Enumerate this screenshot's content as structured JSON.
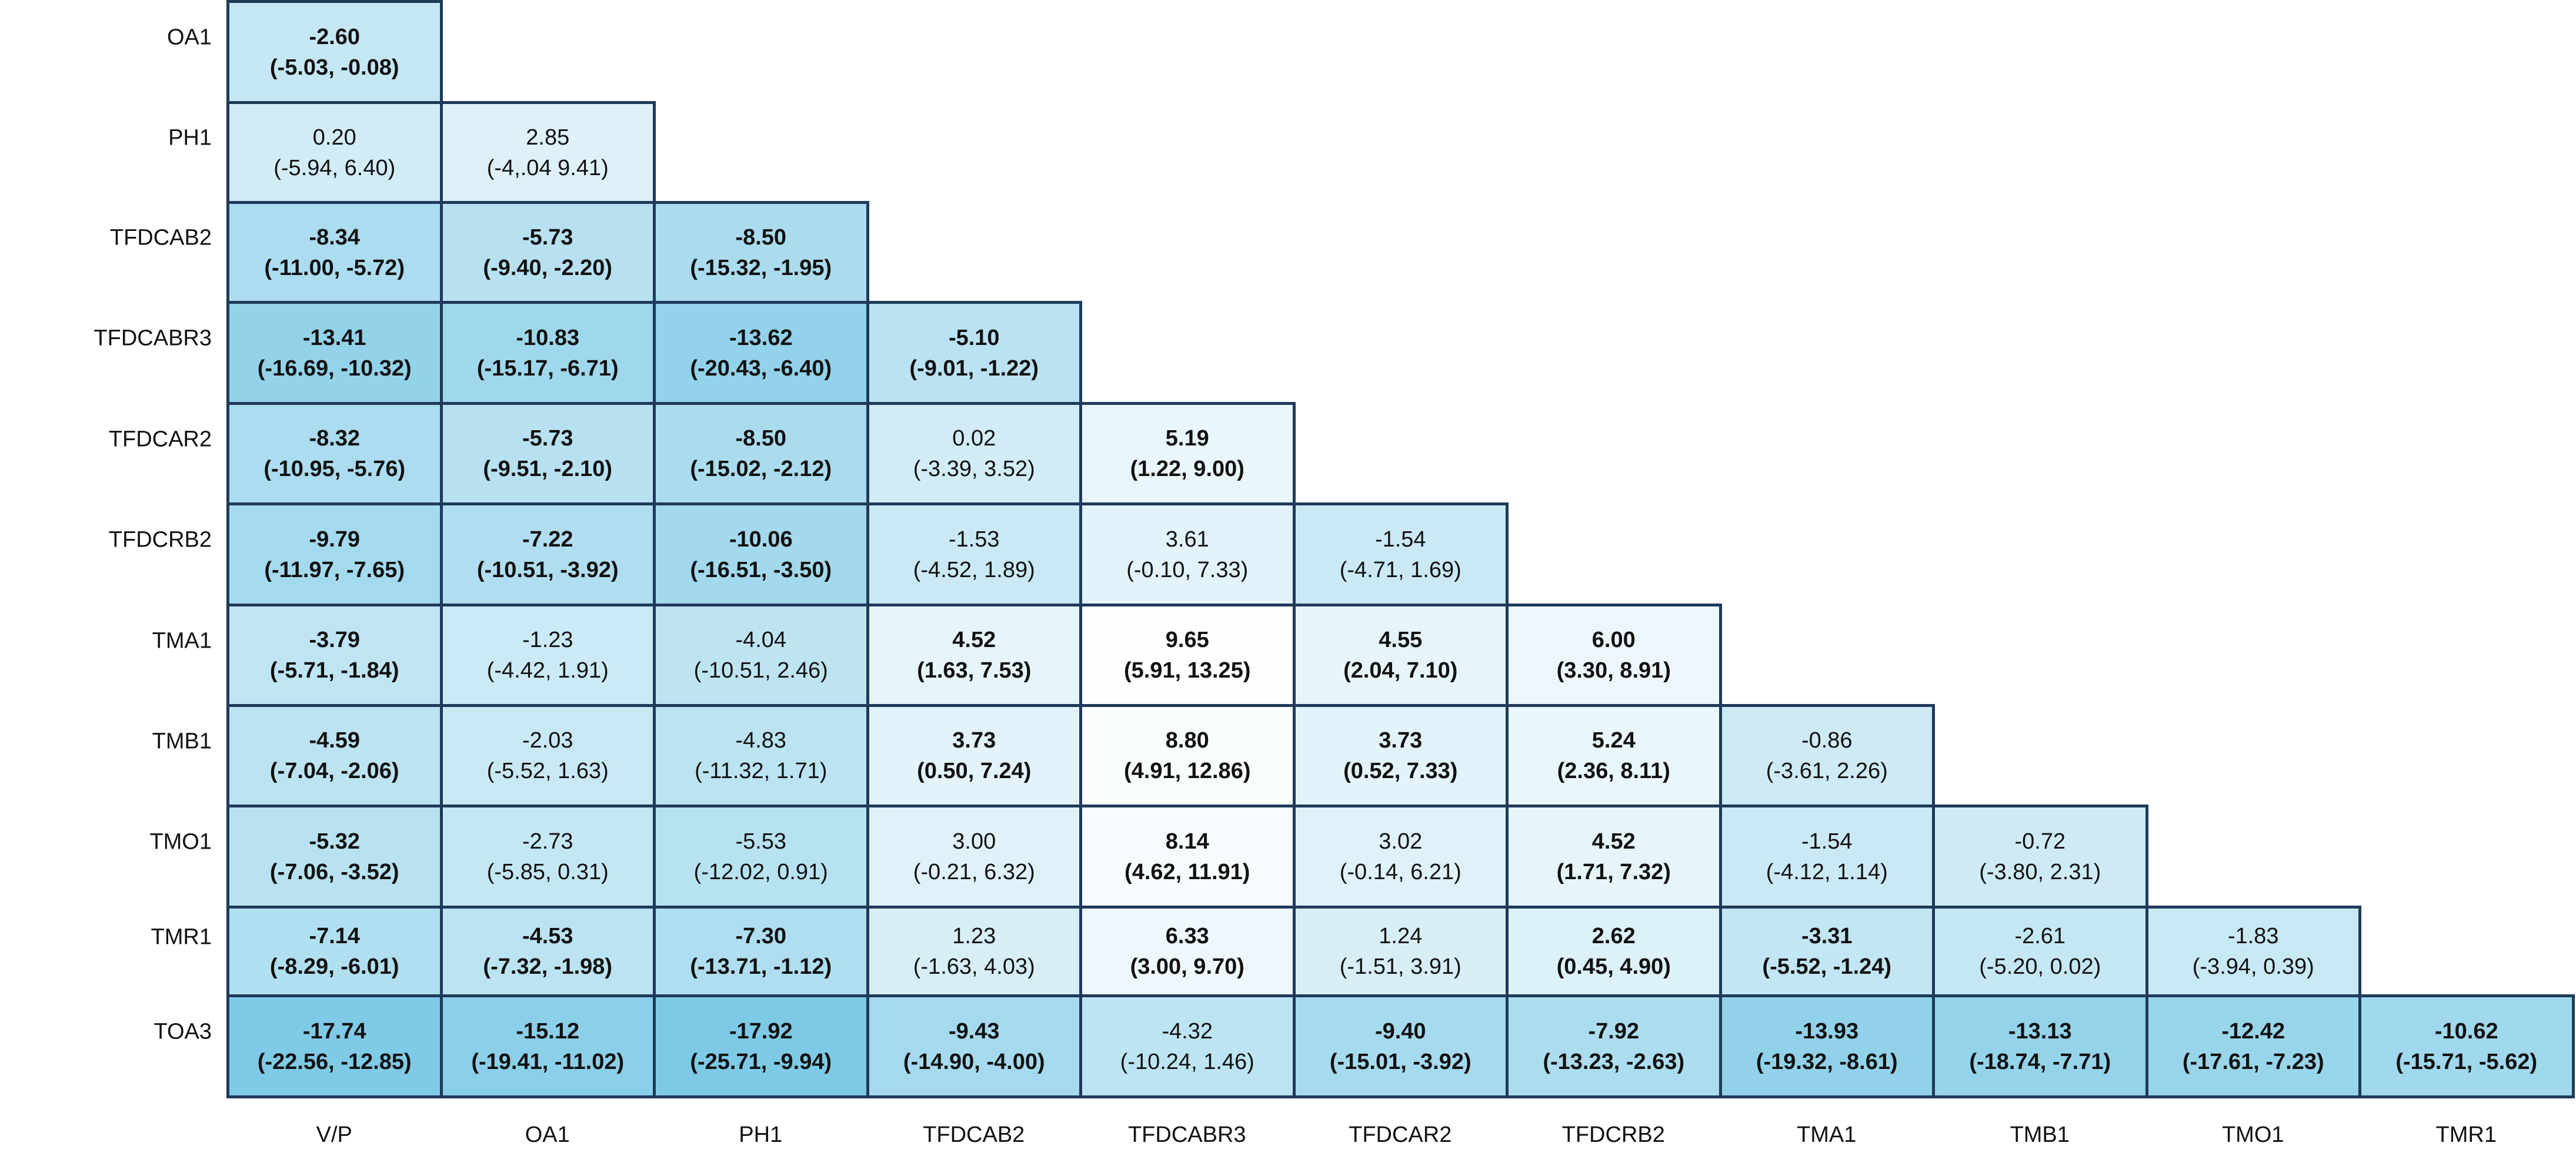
{
  "chart_data": {
    "type": "table",
    "row_labels": [
      "OA1",
      "PH1",
      "TFDCAB2",
      "TFDCABR3",
      "TFDCAR2",
      "TFDCRB2",
      "TMA1",
      "TMB1",
      "TMO1",
      "TMR1",
      "TOA3"
    ],
    "col_labels": [
      "V/P",
      "OA1",
      "PH1",
      "TFDCAB2",
      "TFDCABR3",
      "TFDCAR2",
      "TFDCRB2",
      "TMA1",
      "TMB1",
      "TMO1",
      "TMR1"
    ],
    "rows": [
      [
        {
          "v": "-2.60",
          "ci": "(-5.03, -0.08)",
          "bold": true
        }
      ],
      [
        {
          "v": "0.20",
          "ci": "(-5.94, 6.40)",
          "bold": false
        },
        {
          "v": "2.85",
          "ci": "(-4,.04 9.41)",
          "bold": false
        }
      ],
      [
        {
          "v": "-8.34",
          "ci": "(-11.00, -5.72)",
          "bold": true
        },
        {
          "v": "-5.73",
          "ci": "(-9.40, -2.20)",
          "bold": true
        },
        {
          "v": "-8.50",
          "ci": "(-15.32, -1.95)",
          "bold": true
        }
      ],
      [
        {
          "v": "-13.41",
          "ci": "(-16.69, -10.32)",
          "bold": true
        },
        {
          "v": "-10.83",
          "ci": "(-15.17, -6.71)",
          "bold": true
        },
        {
          "v": "-13.62",
          "ci": "(-20.43, -6.40)",
          "bold": true
        },
        {
          "v": "-5.10",
          "ci": "(-9.01, -1.22)",
          "bold": true
        }
      ],
      [
        {
          "v": "-8.32",
          "ci": "(-10.95, -5.76)",
          "bold": true
        },
        {
          "v": "-5.73",
          "ci": "(-9.51, -2.10)",
          "bold": true
        },
        {
          "v": "-8.50",
          "ci": "(-15.02, -2.12)",
          "bold": true
        },
        {
          "v": "0.02",
          "ci": "(-3.39, 3.52)",
          "bold": false
        },
        {
          "v": "5.19",
          "ci": "(1.22, 9.00)",
          "bold": true
        }
      ],
      [
        {
          "v": "-9.79",
          "ci": "(-11.97, -7.65)",
          "bold": true
        },
        {
          "v": "-7.22",
          "ci": "(-10.51, -3.92)",
          "bold": true
        },
        {
          "v": "-10.06",
          "ci": "(-16.51, -3.50)",
          "bold": true
        },
        {
          "v": "-1.53",
          "ci": "(-4.52, 1.89)",
          "bold": false
        },
        {
          "v": "3.61",
          "ci": "(-0.10, 7.33)",
          "bold": false
        },
        {
          "v": "-1.54",
          "ci": "(-4.71, 1.69)",
          "bold": false
        }
      ],
      [
        {
          "v": "-3.79",
          "ci": "(-5.71, -1.84)",
          "bold": true
        },
        {
          "v": "-1.23",
          "ci": "(-4.42, 1.91)",
          "bold": false
        },
        {
          "v": "-4.04",
          "ci": "(-10.51, 2.46)",
          "bold": false
        },
        {
          "v": "4.52",
          "ci": "(1.63, 7.53)",
          "bold": true
        },
        {
          "v": "9.65",
          "ci": "(5.91, 13.25)",
          "bold": true
        },
        {
          "v": "4.55",
          "ci": "(2.04, 7.10)",
          "bold": true
        },
        {
          "v": "6.00",
          "ci": "(3.30, 8.91)",
          "bold": true
        }
      ],
      [
        {
          "v": "-4.59",
          "ci": "(-7.04, -2.06)",
          "bold": true
        },
        {
          "v": "-2.03",
          "ci": "(-5.52, 1.63)",
          "bold": false
        },
        {
          "v": "-4.83",
          "ci": "(-11.32, 1.71)",
          "bold": false
        },
        {
          "v": "3.73",
          "ci": "(0.50, 7.24)",
          "bold": true
        },
        {
          "v": "8.80",
          "ci": "(4.91, 12.86)",
          "bold": true
        },
        {
          "v": "3.73",
          "ci": "(0.52, 7.33)",
          "bold": true
        },
        {
          "v": "5.24",
          "ci": "(2.36, 8.11)",
          "bold": true
        },
        {
          "v": "-0.86",
          "ci": "(-3.61, 2.26)",
          "bold": false
        }
      ],
      [
        {
          "v": "-5.32",
          "ci": "(-7.06, -3.52)",
          "bold": true
        },
        {
          "v": "-2.73",
          "ci": "(-5.85, 0.31)",
          "bold": false
        },
        {
          "v": "-5.53",
          "ci": "(-12.02, 0.91)",
          "bold": false
        },
        {
          "v": "3.00",
          "ci": "(-0.21, 6.32)",
          "bold": false
        },
        {
          "v": "8.14",
          "ci": "(4.62, 11.91)",
          "bold": true
        },
        {
          "v": "3.02",
          "ci": "(-0.14, 6.21)",
          "bold": false
        },
        {
          "v": "4.52",
          "ci": "(1.71, 7.32)",
          "bold": true
        },
        {
          "v": "-1.54",
          "ci": "(-4.12, 1.14)",
          "bold": false
        },
        {
          "v": "-0.72",
          "ci": "(-3.80, 2.31)",
          "bold": false
        }
      ],
      [
        {
          "v": "-7.14",
          "ci": "(-8.29, -6.01)",
          "bold": true
        },
        {
          "v": "-4.53",
          "ci": "(-7.32, -1.98)",
          "bold": true
        },
        {
          "v": "-7.30",
          "ci": "(-13.71, -1.12)",
          "bold": true
        },
        {
          "v": "1.23",
          "ci": "(-1.63, 4.03)",
          "bold": false
        },
        {
          "v": "6.33",
          "ci": "(3.00, 9.70)",
          "bold": true
        },
        {
          "v": "1.24",
          "ci": "(-1.51, 3.91)",
          "bold": false
        },
        {
          "v": "2.62",
          "ci": "(0.45, 4.90)",
          "bold": true
        },
        {
          "v": "-3.31",
          "ci": "(-5.52, -1.24)",
          "bold": true
        },
        {
          "v": "-2.61",
          "ci": "(-5.20, 0.02)",
          "bold": false
        },
        {
          "v": "-1.83",
          "ci": "(-3.94, 0.39)",
          "bold": false
        }
      ],
      [
        {
          "v": "-17.74",
          "ci": "(-22.56, -12.85)",
          "bold": true
        },
        {
          "v": "-15.12",
          "ci": "(-19.41, -11.02)",
          "bold": true
        },
        {
          "v": "-17.92",
          "ci": "(-25.71, -9.94)",
          "bold": true
        },
        {
          "v": "-9.43",
          "ci": "(-14.90, -4.00)",
          "bold": true
        },
        {
          "v": "-4.32",
          "ci": "(-10.24, 1.46)",
          "bold": false
        },
        {
          "v": "-9.40",
          "ci": "(-15.01, -3.92)",
          "bold": true
        },
        {
          "v": "-7.92",
          "ci": "(-13.23, -2.63)",
          "bold": true
        },
        {
          "v": "-13.93",
          "ci": "(-19.32, -8.61)",
          "bold": true
        },
        {
          "v": "-13.13",
          "ci": "(-18.74, -7.71)",
          "bold": true
        },
        {
          "v": "-12.42",
          "ci": "(-17.61, -7.23)",
          "bold": true
        },
        {
          "v": "-10.62",
          "ci": "(-15.71, -5.62)",
          "bold": true
        }
      ]
    ],
    "color_scale": {
      "low": "#7ecae6",
      "high": "#ffffff",
      "min": -18,
      "max": 10
    },
    "grid": true
  }
}
